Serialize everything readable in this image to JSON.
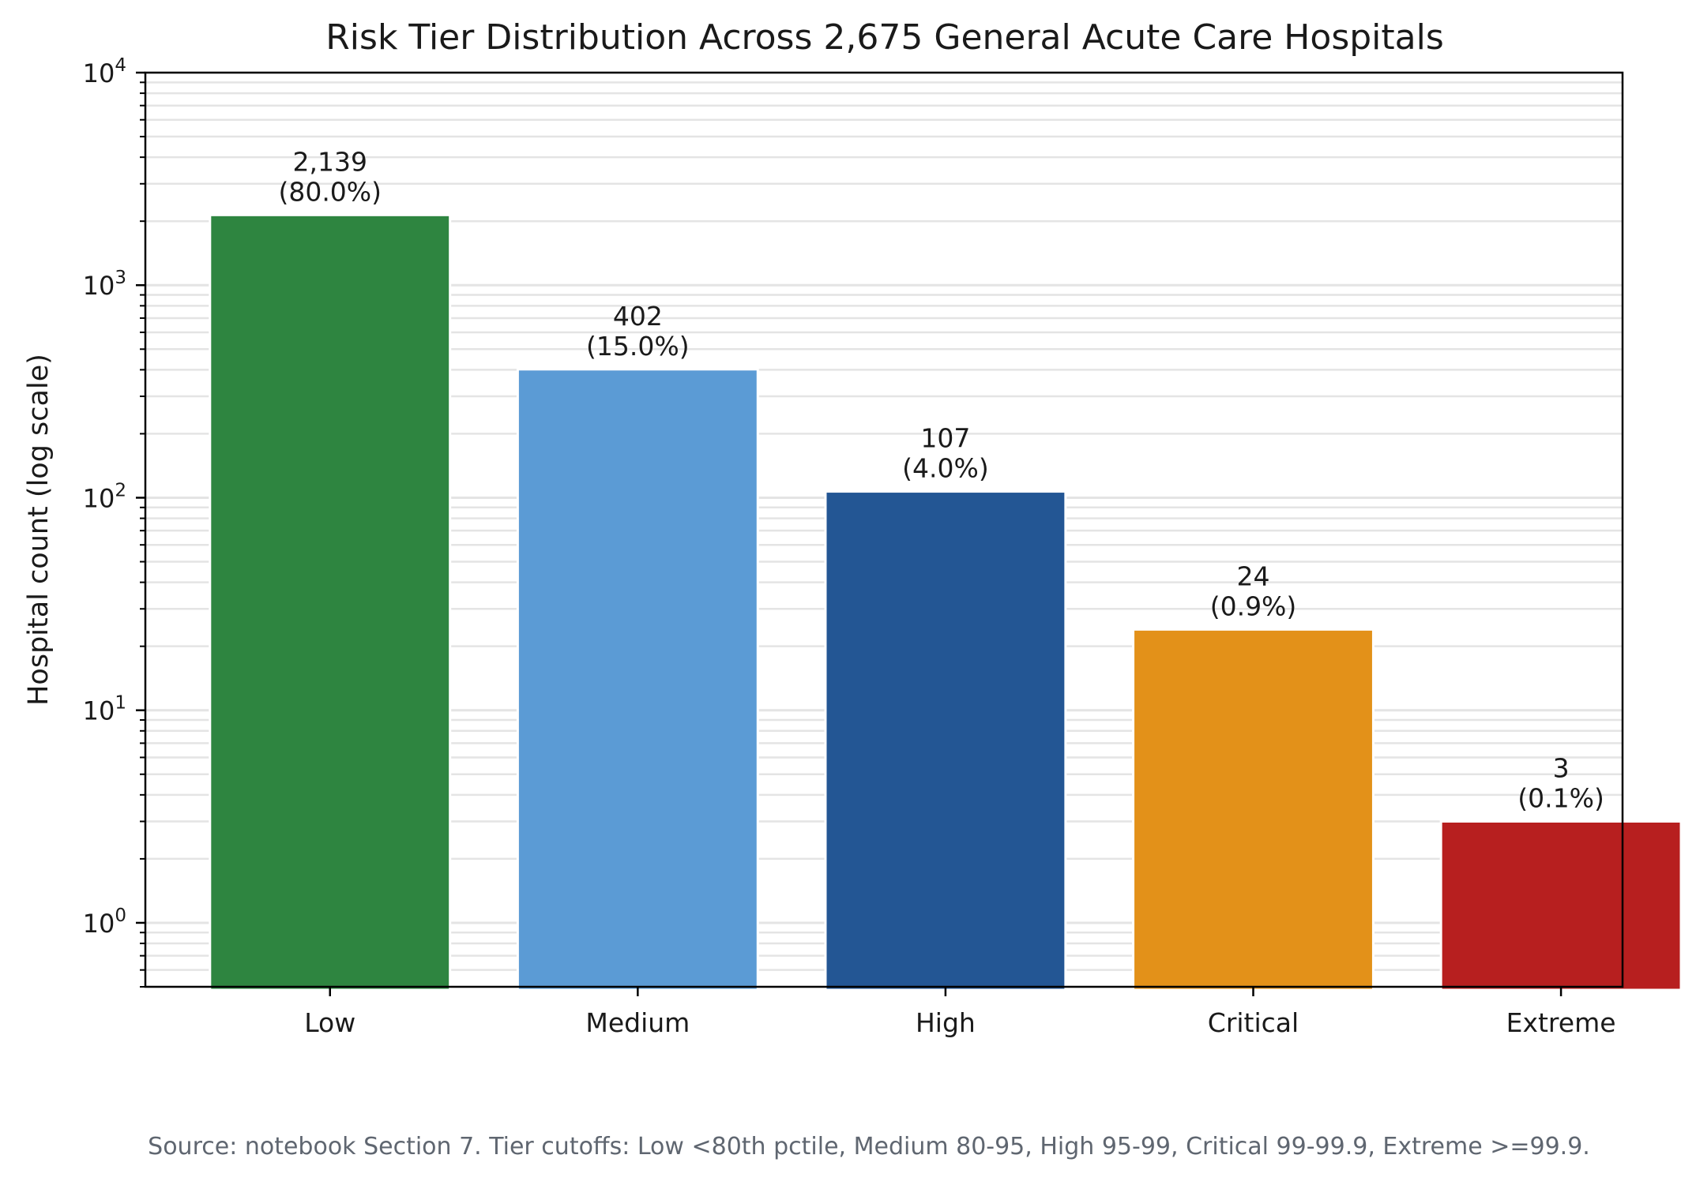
{
  "chart_data": {
    "type": "bar",
    "title": "Risk Tier Distribution Across 2,675 General Acute Care Hospitals",
    "xlabel": "",
    "ylabel": "Hospital count (log scale)",
    "yscale": "log",
    "ylim": [
      0.5,
      10000
    ],
    "grid": "horizontal, major and minor",
    "categories": [
      "Low",
      "Medium",
      "High",
      "Critical",
      "Extreme"
    ],
    "values": [
      2139,
      402,
      107,
      24,
      3
    ],
    "value_labels": [
      "2,139",
      "402",
      "107",
      "24",
      "3"
    ],
    "percent_labels": [
      "(80.0%)",
      "(15.0%)",
      "(4.0%)",
      "(0.9%)",
      "(0.1%)"
    ],
    "colors": [
      "#2e8540",
      "#5b9bd5",
      "#235694",
      "#e39119",
      "#b71f1f"
    ],
    "ytick_labels": [
      {
        "value": 1,
        "base": "10",
        "exp": "0"
      },
      {
        "value": 10,
        "base": "10",
        "exp": "1"
      },
      {
        "value": 100,
        "base": "10",
        "exp": "2"
      },
      {
        "value": 1000,
        "base": "10",
        "exp": "3"
      },
      {
        "value": 10000,
        "base": "10",
        "exp": "4"
      }
    ]
  },
  "footer": {
    "source_note": "Source: notebook Section 7. Tier cutoffs: Low <80th pctile, Medium 80-95, High 95-99, Critical 99-99.9, Extreme >=99.9."
  }
}
